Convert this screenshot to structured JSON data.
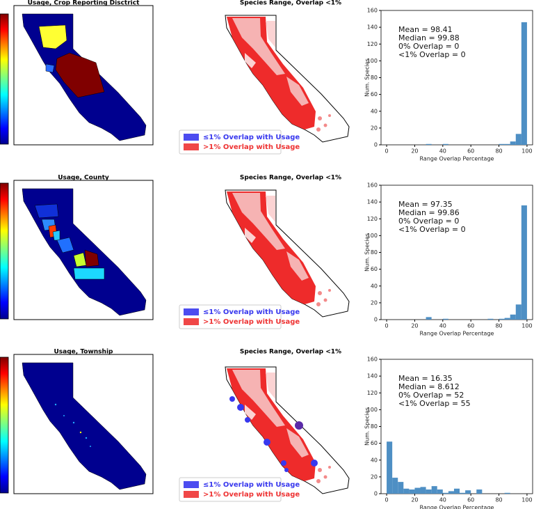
{
  "rows": [
    {
      "usage_title": "Usage, Crop Reporting Disctrict",
      "range_title": "Species Range, Overlap <1%"
    },
    {
      "usage_title": "Usage, County",
      "range_title": "Species Range, Overlap <1%"
    },
    {
      "usage_title": "Usage, Township",
      "range_title": "Species Range, Overlap <1%"
    }
  ],
  "legend": {
    "low": "≤1% Overlap with Usage",
    "high": ">1% Overlap with Usage"
  },
  "chart_data": [
    {
      "type": "histogram",
      "xlabel": "Range Overlap Percentage",
      "ylabel": "Num. Species",
      "annotations": [
        "Mean = 98.41",
        "Median = 99.88",
        "0% Overlap = 0",
        "<1% Overlap = 0"
      ],
      "bins": [
        0,
        4,
        8,
        12,
        16,
        20,
        24,
        28,
        32,
        36,
        40,
        44,
        48,
        52,
        56,
        60,
        64,
        68,
        72,
        76,
        80,
        84,
        88,
        92,
        96,
        100
      ],
      "values": [
        0,
        0,
        0,
        0,
        0,
        0,
        0,
        1,
        0,
        0,
        1,
        0,
        0,
        0,
        0,
        0,
        0,
        0,
        0,
        0,
        1,
        1,
        4,
        13,
        146
      ],
      "color": "#4e8fc4",
      "xlim": [
        -4,
        104
      ],
      "xticks": [
        0,
        20,
        40,
        60,
        80,
        100
      ],
      "ylim": [
        0,
        160
      ],
      "yticks": [
        0,
        20,
        40,
        60,
        80,
        100,
        120,
        140,
        160
      ]
    },
    {
      "type": "histogram",
      "xlabel": "Range Overlap Percentage",
      "ylabel": "Num. Species",
      "annotations": [
        "Mean = 97.35",
        "Median = 99.86",
        "0% Overlap = 0",
        "<1% Overlap = 0"
      ],
      "bins": [
        0,
        4,
        8,
        12,
        16,
        20,
        24,
        28,
        32,
        36,
        40,
        44,
        48,
        52,
        56,
        60,
        64,
        68,
        72,
        76,
        80,
        84,
        88,
        92,
        96,
        100
      ],
      "values": [
        0,
        0,
        0,
        0,
        0,
        0,
        0,
        3,
        0,
        0,
        1,
        0,
        0,
        0,
        0,
        0,
        0,
        0,
        1,
        0,
        1,
        2,
        6,
        18,
        136
      ],
      "color": "#4e8fc4",
      "xlim": [
        -4,
        104
      ],
      "xticks": [
        0,
        20,
        40,
        60,
        80,
        100
      ],
      "ylim": [
        0,
        160
      ],
      "yticks": [
        0,
        20,
        40,
        60,
        80,
        100,
        120,
        140,
        160
      ]
    },
    {
      "type": "histogram",
      "xlabel": "Range Overlap Percentage",
      "ylabel": "Num. Species",
      "annotations": [
        "Mean = 16.35",
        "Median = 8.612",
        "0% Overlap = 52",
        "<1% Overlap = 55"
      ],
      "bins": [
        0,
        4,
        8,
        12,
        16,
        20,
        24,
        28,
        32,
        36,
        40,
        44,
        48,
        52,
        56,
        60,
        64,
        68,
        72,
        76,
        80,
        84,
        88,
        92,
        96,
        100
      ],
      "values": [
        62,
        19,
        14,
        6,
        5,
        7,
        8,
        5,
        9,
        5,
        1,
        3,
        6,
        1,
        4,
        0,
        5,
        0,
        0,
        0,
        0,
        1,
        0,
        0,
        0
      ],
      "color": "#4e8fc4",
      "xlim": [
        -4,
        104
      ],
      "xticks": [
        0,
        20,
        40,
        60,
        80,
        100
      ],
      "ylim": [
        0,
        160
      ],
      "yticks": [
        0,
        20,
        40,
        60,
        80,
        100,
        120,
        140,
        160
      ]
    }
  ]
}
